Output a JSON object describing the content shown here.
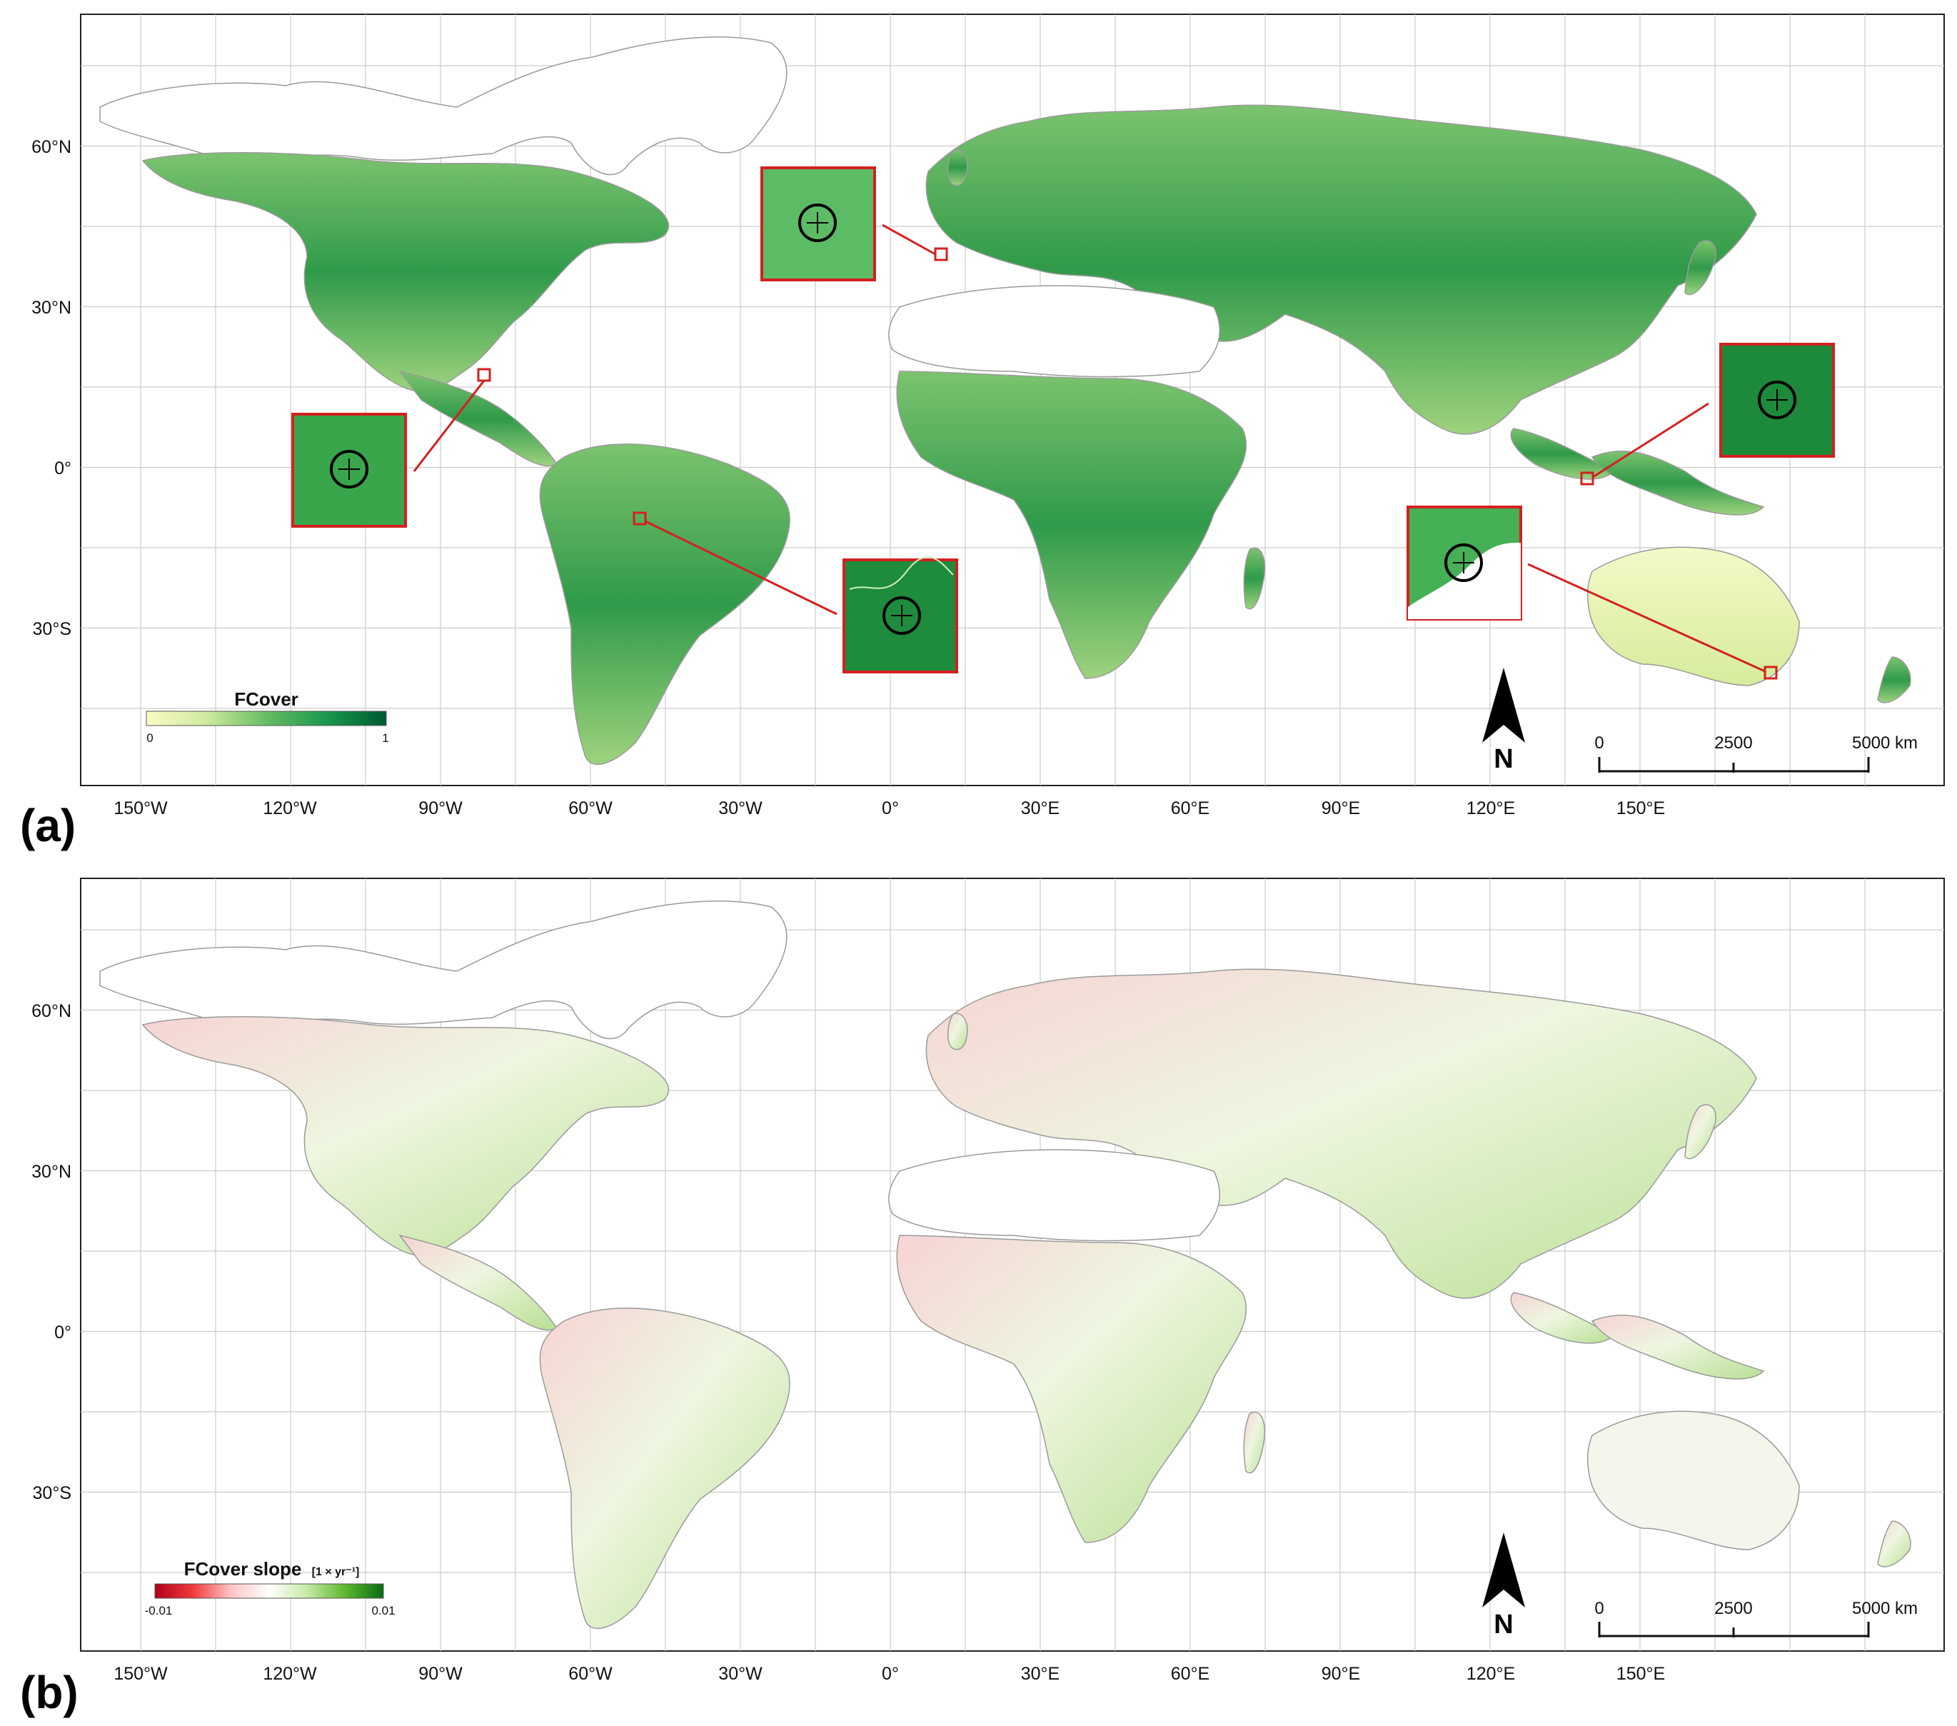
{
  "panels": [
    {
      "id": "a",
      "letter": "(a)",
      "legend": {
        "title": "FCover",
        "unit": "",
        "min_label": "0",
        "max_label": "1",
        "colors": [
          "#fbfbc4",
          "#cfeaa0",
          "#66bd63",
          "#1a9850",
          "#00592f"
        ]
      },
      "insets": true
    },
    {
      "id": "b",
      "letter": "(b)",
      "legend": {
        "title": "FCover slope",
        "unit": "[1 × yr⁻¹]",
        "min_label": "-0.01",
        "max_label": "0.01",
        "colors": [
          "#b2001a",
          "#f03b3b",
          "#fcc5c5",
          "#ffffff",
          "#c7e9a6",
          "#5cb82e",
          "#0a6b14"
        ]
      },
      "insets": false
    }
  ],
  "axes": {
    "lon_labels": [
      "150°W",
      "120°W",
      "90°W",
      "60°W",
      "30°W",
      "0°",
      "30°E",
      "60°E",
      "90°E",
      "120°E",
      "150°E"
    ],
    "lat_labels": [
      "60°N",
      "30°N",
      "0°",
      "30°S"
    ]
  },
  "scale_bar": {
    "labels": [
      "0",
      "2500",
      "5000 km"
    ]
  },
  "north_arrow": {
    "label": "N"
  },
  "colors": {
    "inset_border": "#d42020",
    "land_green": "#3aa64c",
    "land_light": "#e6f2b0",
    "grid": "#cccccc"
  }
}
